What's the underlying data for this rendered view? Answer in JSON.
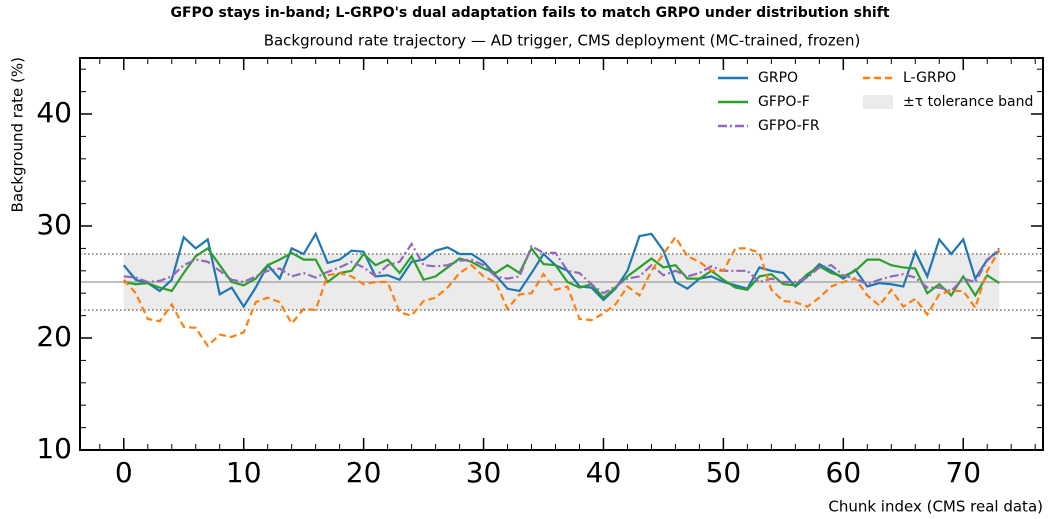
{
  "chart_data": {
    "type": "line",
    "title": "GFPO stays in-band; L-GRPO's dual adaptation fails to match GRPO under distribution shift",
    "subtitle": "Background rate trajectory — AD trigger, CMS deployment (MC-trained, frozen)",
    "x_label": "Chunk index (CMS real data)",
    "y_label": "Background rate (%)",
    "x": [
      0,
      1,
      2,
      3,
      4,
      5,
      6,
      7,
      8,
      9,
      10,
      11,
      12,
      13,
      14,
      15,
      16,
      17,
      18,
      19,
      20,
      21,
      22,
      23,
      24,
      25,
      26,
      27,
      28,
      29,
      30,
      31,
      32,
      33,
      34,
      35,
      36,
      37,
      38,
      39,
      40,
      41,
      42,
      43,
      44,
      45,
      46,
      47,
      48,
      49,
      50,
      51,
      52,
      53,
      54,
      55,
      56,
      57,
      58,
      59,
      60,
      61,
      62,
      63,
      64,
      65,
      66,
      67,
      68,
      69,
      70,
      71,
      72,
      73
    ],
    "series": [
      {
        "name": "GRPO",
        "color": "#1f77b4",
        "dash": "solid",
        "values": [
          26.5,
          25.2,
          24.9,
          24.2,
          25.2,
          29.0,
          28.0,
          28.8,
          23.9,
          24.5,
          22.8,
          24.5,
          26.5,
          25.3,
          28.0,
          27.5,
          29.3,
          26.7,
          27.0,
          27.8,
          27.7,
          25.5,
          25.6,
          25.2,
          26.8,
          27.0,
          27.8,
          28.1,
          27.5,
          27.5,
          26.8,
          25.6,
          24.4,
          24.2,
          25.8,
          27.5,
          26.5,
          26.0,
          24.6,
          24.5,
          23.4,
          24.4,
          26.0,
          29.1,
          29.3,
          27.8,
          25.0,
          24.4,
          25.3,
          25.5,
          25.0,
          24.7,
          24.4,
          26.3,
          26.0,
          25.8,
          24.6,
          25.5,
          26.6,
          26.0,
          25.3,
          26.1,
          24.6,
          24.9,
          24.8,
          24.6,
          27.7,
          25.5,
          28.8,
          27.5,
          28.8,
          25.3,
          27.0,
          27.8
        ]
      },
      {
        "name": "GFPO-F",
        "color": "#2ca02c",
        "dash": "solid",
        "values": [
          25.0,
          24.8,
          24.9,
          24.5,
          24.2,
          25.8,
          27.3,
          28.0,
          26.5,
          25.0,
          24.7,
          25.3,
          26.5,
          27.0,
          27.6,
          27.0,
          27.0,
          25.0,
          25.8,
          26.0,
          27.5,
          26.5,
          27.0,
          25.8,
          27.3,
          25.2,
          25.5,
          26.3,
          27.1,
          26.8,
          26.2,
          25.8,
          26.5,
          25.8,
          28.0,
          26.6,
          26.5,
          25.0,
          24.5,
          24.8,
          23.6,
          24.5,
          25.5,
          26.3,
          27.1,
          26.3,
          26.5,
          25.3,
          25.3,
          26.0,
          25.2,
          24.5,
          24.3,
          25.5,
          25.7,
          24.8,
          24.7,
          25.7,
          26.4,
          25.8,
          25.5,
          26.0,
          27.0,
          27.0,
          26.5,
          26.3,
          26.2,
          24.0,
          24.8,
          23.8,
          25.5,
          23.8,
          25.6,
          24.9
        ]
      },
      {
        "name": "GFPO-FR",
        "color": "#9467bd",
        "dash": "dashdot",
        "values": [
          25.5,
          25.4,
          25.0,
          25.1,
          25.5,
          26.5,
          27.0,
          26.8,
          26.0,
          25.2,
          25.0,
          25.5,
          26.0,
          26.2,
          25.5,
          25.8,
          25.4,
          25.9,
          26.3,
          26.8,
          26.3,
          25.5,
          26.5,
          26.8,
          28.4,
          26.5,
          26.4,
          26.5,
          26.9,
          27.0,
          26.5,
          25.5,
          25.3,
          25.5,
          28.2,
          27.6,
          27.6,
          26.0,
          25.8,
          24.8,
          24.0,
          24.6,
          25.3,
          25.5,
          26.5,
          25.6,
          26.0,
          25.5,
          25.8,
          26.4,
          26.0,
          26.0,
          26.0,
          25.0,
          25.3,
          25.0,
          25.0,
          25.4,
          26.3,
          26.5,
          25.6,
          25.3,
          24.8,
          25.2,
          25.5,
          25.7,
          25.4,
          24.5,
          24.5,
          24.2,
          25.3,
          25.0,
          26.9,
          28.0
        ]
      },
      {
        "name": "L-GRPO",
        "color": "#ff7f0e",
        "dash": "dashed",
        "values": [
          25.2,
          24.0,
          21.7,
          21.5,
          23.0,
          21.0,
          20.9,
          19.3,
          20.3,
          20.1,
          20.5,
          23.2,
          23.6,
          23.2,
          21.3,
          22.6,
          22.5,
          25.6,
          25.8,
          25.5,
          24.8,
          25.0,
          25.0,
          22.3,
          22.0,
          23.3,
          23.6,
          24.5,
          25.8,
          26.5,
          25.5,
          25.0,
          22.6,
          23.9,
          24.0,
          25.7,
          24.3,
          24.6,
          21.7,
          21.6,
          22.2,
          23.0,
          24.6,
          23.8,
          26.0,
          27.5,
          29.0,
          27.3,
          26.8,
          26.0,
          26.0,
          28.0,
          28.0,
          27.6,
          24.3,
          23.3,
          23.2,
          22.8,
          23.6,
          24.6,
          25.0,
          25.3,
          23.8,
          22.9,
          24.3,
          22.8,
          23.5,
          22.1,
          23.9,
          24.2,
          24.2,
          22.7,
          26.0,
          27.8
        ]
      }
    ],
    "tolerance_band": {
      "name": "±τ tolerance band",
      "center": 25,
      "lower": 22.5,
      "upper": 27.5,
      "x": [
        0,
        73
      ],
      "color": "#ebebeb"
    },
    "xlim": [
      -3.65,
      76.65
    ],
    "ylim": [
      10,
      45
    ],
    "xticks": [
      0,
      10,
      20,
      30,
      40,
      50,
      60,
      70
    ],
    "yticks": [
      10,
      20,
      30,
      40
    ],
    "legend": "upper right"
  }
}
